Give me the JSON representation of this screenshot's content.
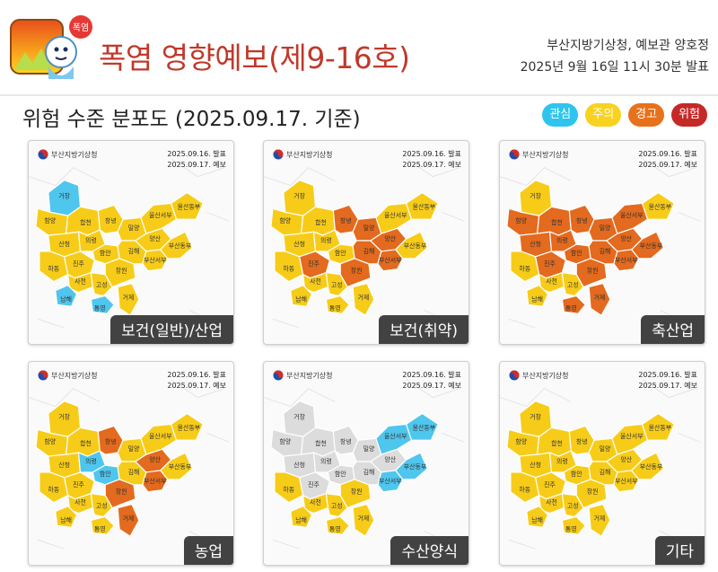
{
  "header": {
    "logo_badge": "폭염",
    "title": "폭염 영향예보(제9-16호)",
    "issuer": "부산지방기상청, 예보관 양호정",
    "issued": "2025년 9월 16일 11시 30분 발표"
  },
  "subtitle": "위험 수준 분포도 (2025.09.17. 기준)",
  "legend": [
    {
      "label": "관심",
      "color": "#2ec4ee"
    },
    {
      "label": "주의",
      "color": "#f9d21f"
    },
    {
      "label": "경고",
      "color": "#e8711b"
    },
    {
      "label": "위험",
      "color": "#c62828"
    }
  ],
  "level_colors": {
    "관심": "#4fc6ee",
    "주의": "#f7cc19",
    "경고": "#e36a1e",
    "위험": "#c62828",
    "없음": "#dcdcdc"
  },
  "map_meta": {
    "agency": "부산지방기상청",
    "issued": "2025.09.16. 발표",
    "forecast": "2025.09.17. 예보"
  },
  "panels": [
    {
      "category": "보건(일반)/산업",
      "levels": {
        "거창": "관심",
        "함양": "주의",
        "산청": "주의",
        "하동": "주의",
        "남해": "관심",
        "합천": "주의",
        "의령": "주의",
        "창녕": "주의",
        "밀양": "주의",
        "양산": "주의",
        "울산서부": "주의",
        "울산동부": "주의",
        "부산동부": "주의",
        "부산서부": "주의",
        "김해": "주의",
        "창원": "주의",
        "함안": "주의",
        "진주": "주의",
        "사천": "주의",
        "고성": "주의",
        "통영": "관심",
        "거제": "주의"
      }
    },
    {
      "category": "보건(취약)",
      "levels": {
        "거창": "주의",
        "함양": "주의",
        "산청": "주의",
        "하동": "주의",
        "남해": "주의",
        "합천": "주의",
        "의령": "주의",
        "창녕": "경고",
        "밀양": "경고",
        "양산": "경고",
        "울산서부": "주의",
        "울산동부": "주의",
        "부산동부": "주의",
        "부산서부": "경고",
        "김해": "경고",
        "창원": "경고",
        "함안": "주의",
        "진주": "경고",
        "사천": "주의",
        "고성": "주의",
        "통영": "주의",
        "거제": "주의"
      }
    },
    {
      "category": "축산업",
      "levels": {
        "거창": "주의",
        "함양": "경고",
        "산청": "경고",
        "하동": "주의",
        "남해": "주의",
        "합천": "경고",
        "의령": "경고",
        "창녕": "경고",
        "밀양": "경고",
        "양산": "경고",
        "울산서부": "경고",
        "울산동부": "주의",
        "부산동부": "경고",
        "부산서부": "경고",
        "김해": "경고",
        "창원": "경고",
        "함안": "경고",
        "진주": "경고",
        "사천": "주의",
        "고성": "주의",
        "통영": "경고",
        "거제": "경고"
      }
    },
    {
      "category": "농업",
      "levels": {
        "거창": "주의",
        "함양": "주의",
        "산청": "주의",
        "하동": "주의",
        "남해": "주의",
        "합천": "주의",
        "의령": "관심",
        "창녕": "경고",
        "밀양": "주의",
        "양산": "경고",
        "울산서부": "주의",
        "울산동부": "주의",
        "부산동부": "주의",
        "부산서부": "경고",
        "김해": "주의",
        "창원": "경고",
        "함안": "관심",
        "진주": "주의",
        "사천": "주의",
        "고성": "주의",
        "통영": "주의",
        "거제": "경고"
      }
    },
    {
      "category": "수산양식",
      "levels": {
        "거창": "없음",
        "함양": "없음",
        "산청": "없음",
        "하동": "주의",
        "남해": "주의",
        "합천": "없음",
        "의령": "없음",
        "창녕": "없음",
        "밀양": "없음",
        "양산": "없음",
        "울산서부": "관심",
        "울산동부": "관심",
        "부산동부": "관심",
        "부산서부": "관심",
        "김해": "없음",
        "창원": "주의",
        "함안": "없음",
        "진주": "없음",
        "사천": "주의",
        "고성": "주의",
        "통영": "주의",
        "거제": "주의"
      }
    },
    {
      "category": "기타",
      "levels": {
        "거창": "주의",
        "함양": "주의",
        "산청": "주의",
        "하동": "주의",
        "남해": "주의",
        "합천": "주의",
        "의령": "주의",
        "창녕": "주의",
        "밀양": "주의",
        "양산": "주의",
        "울산서부": "주의",
        "울산동부": "주의",
        "부산동부": "주의",
        "부산서부": "주의",
        "김해": "주의",
        "창원": "주의",
        "함안": "주의",
        "진주": "주의",
        "사천": "주의",
        "고성": "주의",
        "통영": "주의",
        "거제": "주의"
      }
    }
  ]
}
